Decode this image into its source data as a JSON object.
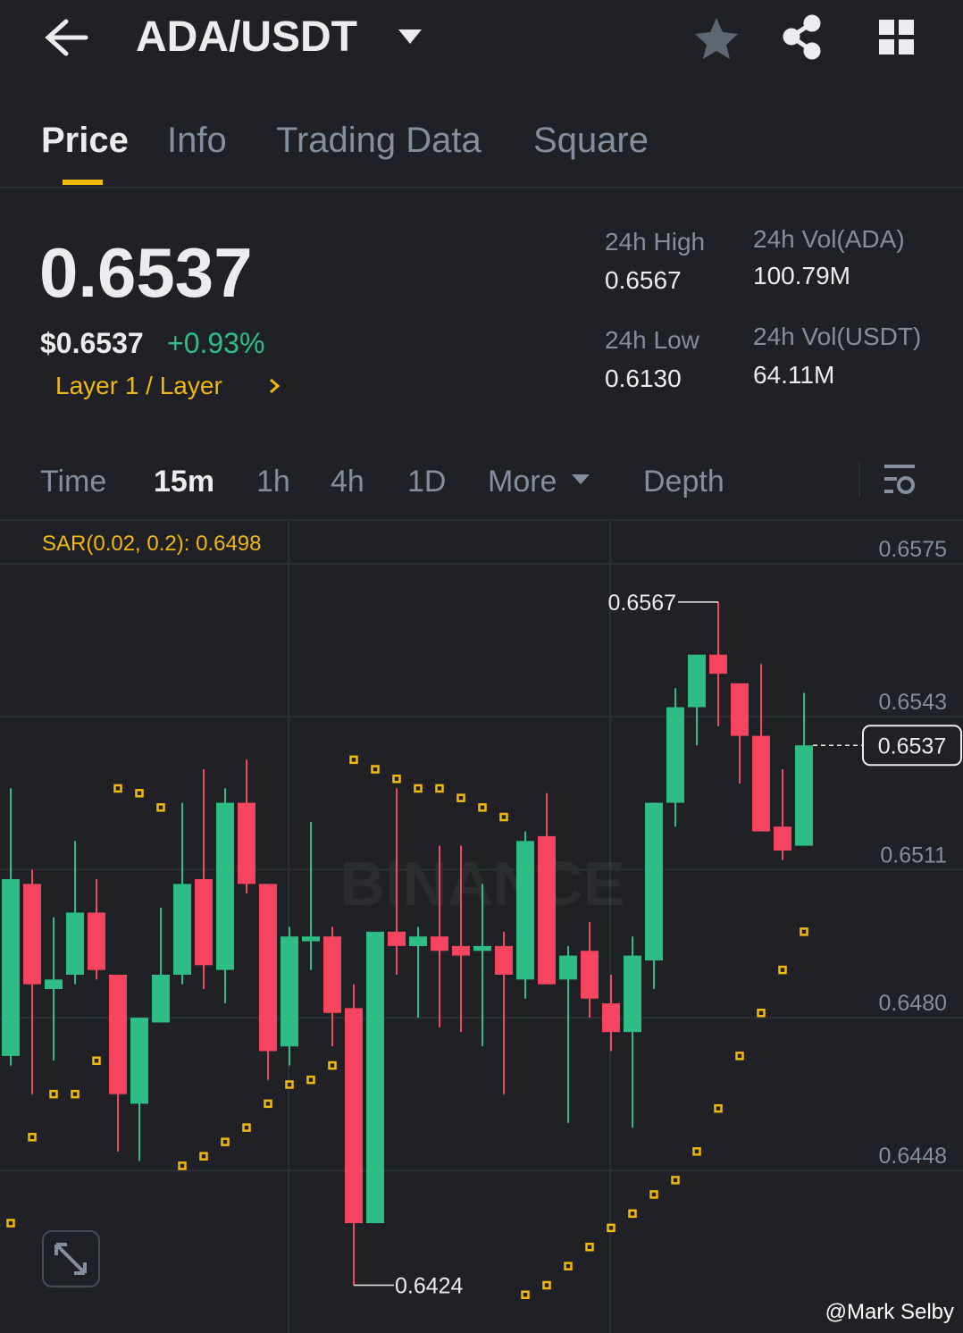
{
  "header": {
    "pair": "ADA/USDT"
  },
  "tabs": [
    "Price",
    "Info",
    "Trading Data",
    "Square"
  ],
  "ticker": {
    "price": "0.6537",
    "price_usd": "$0.6537",
    "change": "+0.93%",
    "tag": "Layer 1 / Layer",
    "stats": [
      {
        "label": "24h High",
        "value": "0.6567"
      },
      {
        "label": "24h Low",
        "value": "0.6130"
      },
      {
        "label": "24h Vol(ADA)",
        "value": "100.79M"
      },
      {
        "label": "24h Vol(USDT)",
        "value": "64.11M"
      }
    ]
  },
  "intervals": [
    "Time",
    "15m",
    "1h",
    "4h",
    "1D",
    "More",
    "Depth"
  ],
  "chart_data": {
    "type": "candlestick",
    "indicator_label": "SAR(0.02, 0.2): 0.6498",
    "watermark": "BINANCE",
    "up_color": "#2ebd85",
    "down_color": "#f6465d",
    "sar_color": "#f0b90b",
    "ylim": [
      0.6414,
      0.6584
    ],
    "yticks": [
      0.6575,
      0.6543,
      0.6511,
      {
        "value": 0.648,
        "label": "0.6480"
      },
      0.6448
    ],
    "grid": true,
    "open": [
      0.6472,
      0.6508,
      0.6486,
      0.6489,
      0.6502,
      0.6489,
      0.6462,
      0.6479,
      0.6489,
      0.6509,
      0.649,
      0.6525,
      0.6508,
      0.6474,
      0.6496,
      0.6497,
      0.6482,
      0.6437,
      0.6498,
      0.6495,
      0.6497,
      0.6495,
      0.6494,
      0.6495,
      0.6488,
      0.6518,
      0.6488,
      0.6494,
      0.6483,
      0.6477,
      0.6492,
      0.6525,
      0.6545,
      0.6556,
      0.655,
      0.6539,
      0.652,
      0.6516
    ],
    "high": [
      0.6528,
      0.6511,
      0.6501,
      0.6517,
      0.6509,
      0.6489,
      0.648,
      0.6503,
      0.6525,
      0.6532,
      0.6528,
      0.6534,
      0.6508,
      0.6499,
      0.6521,
      0.6499,
      0.6487,
      0.6498,
      0.6528,
      0.6499,
      0.6516,
      0.6516,
      0.6508,
      0.6498,
      0.6519,
      0.6527,
      0.6495,
      0.65,
      0.6489,
      0.6497,
      0.6525,
      0.6549,
      0.6556,
      0.6567,
      0.655,
      0.6554,
      0.6532,
      0.6548
    ],
    "low": [
      0.647,
      0.6464,
      0.6471,
      0.6487,
      0.6488,
      0.6452,
      0.645,
      0.6479,
      0.6487,
      0.6486,
      0.6483,
      0.6506,
      0.6467,
      0.647,
      0.649,
      0.6474,
      0.6424,
      0.6437,
      0.6489,
      0.648,
      0.6478,
      0.6477,
      0.6474,
      0.6464,
      0.6484,
      0.6487,
      0.6458,
      0.648,
      0.6473,
      0.6457,
      0.6486,
      0.652,
      0.6537,
      0.6541,
      0.6529,
      0.6519,
      0.6513,
      0.6516
    ],
    "close": [
      0.6509,
      0.6487,
      0.6488,
      0.6502,
      0.649,
      0.6464,
      0.648,
      0.6489,
      0.6508,
      0.6491,
      0.6525,
      0.6508,
      0.6473,
      0.6497,
      0.6497,
      0.6481,
      0.6437,
      0.6498,
      0.6495,
      0.6497,
      0.6494,
      0.6493,
      0.6495,
      0.6489,
      0.6517,
      0.6487,
      0.6493,
      0.6484,
      0.6477,
      0.6493,
      0.6525,
      0.6545,
      0.6556,
      0.6552,
      0.6539,
      0.6519,
      0.6515,
      0.6537
    ],
    "sar": [
      0.6437,
      0.6455,
      0.6464,
      0.6464,
      0.6471,
      0.6528,
      0.6527,
      0.6524,
      0.6449,
      0.6451,
      0.6454,
      0.6457,
      0.6462,
      0.6466,
      0.6467,
      0.647,
      0.6534,
      0.6532,
      0.653,
      0.6528,
      0.6528,
      0.6526,
      0.6524,
      0.6522,
      0.6422,
      0.6424,
      0.6428,
      0.6432,
      0.6436,
      0.6439,
      0.6443,
      0.6446,
      0.6452,
      0.6461,
      0.6472,
      0.6481,
      0.649,
      0.6498
    ]
  },
  "credit": "@Mark Selby"
}
